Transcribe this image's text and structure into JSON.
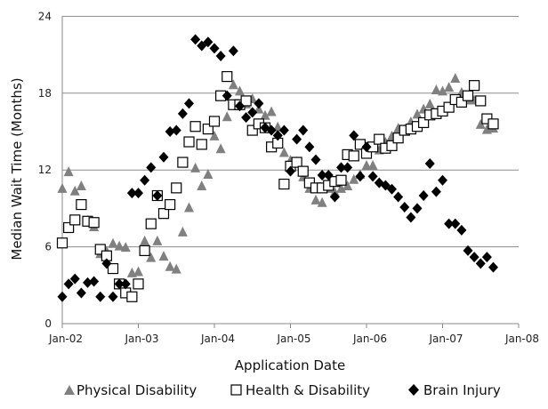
{
  "chart_data": {
    "type": "scatter",
    "xlabel": "Application Date",
    "ylabel": "Median Wait Time  (Months)",
    "ylim": [
      0,
      24
    ],
    "yticks": [
      0,
      6,
      12,
      18,
      24
    ],
    "xlim": [
      "2002-01",
      "2008-01"
    ],
    "xticks": [
      "2002-01",
      "2003-01",
      "2004-01",
      "2005-01",
      "2006-01",
      "2007-01",
      "2008-01"
    ],
    "xtick_labels": [
      "Jan-02",
      "Jan-03",
      "Jan-04",
      "Jan-05",
      "Jan-06",
      "Jan-07",
      "Jan-08"
    ],
    "grid": "horizontal",
    "legend_position": "bottom",
    "x": [
      "2002-01",
      "2002-02",
      "2002-03",
      "2002-04",
      "2002-05",
      "2002-06",
      "2002-07",
      "2002-08",
      "2002-09",
      "2002-10",
      "2002-11",
      "2002-12",
      "2003-01",
      "2003-02",
      "2003-03",
      "2003-04",
      "2003-05",
      "2003-06",
      "2003-07",
      "2003-08",
      "2003-09",
      "2003-10",
      "2003-11",
      "2003-12",
      "2004-01",
      "2004-02",
      "2004-03",
      "2004-04",
      "2004-05",
      "2004-06",
      "2004-07",
      "2004-08",
      "2004-09",
      "2004-10",
      "2004-11",
      "2004-12",
      "2005-01",
      "2005-02",
      "2005-03",
      "2005-04",
      "2005-05",
      "2005-06",
      "2005-07",
      "2005-08",
      "2005-09",
      "2005-10",
      "2005-11",
      "2005-12",
      "2006-01",
      "2006-02",
      "2006-03",
      "2006-04",
      "2006-05",
      "2006-06",
      "2006-07",
      "2006-08",
      "2006-09",
      "2006-10",
      "2006-11",
      "2006-12",
      "2007-01",
      "2007-02",
      "2007-03",
      "2007-04",
      "2007-05",
      "2007-06",
      "2007-07",
      "2007-08",
      "2007-09"
    ],
    "series": [
      {
        "name": "Physical Disability",
        "marker": "triangle",
        "color": "#808080",
        "values": [
          10.6,
          11.9,
          10.4,
          10.8,
          8.1,
          7.6,
          5.5,
          5.7,
          6.3,
          6.1,
          6.0,
          4.0,
          4.1,
          6.5,
          5.2,
          6.5,
          5.3,
          4.5,
          4.3,
          7.2,
          9.1,
          12.2,
          10.8,
          11.7,
          14.7,
          13.7,
          16.2,
          18.7,
          18.2,
          17.2,
          17.6,
          16.8,
          16.3,
          16.6,
          15.4,
          13.4,
          12.8,
          12.7,
          11.5,
          10.6,
          9.7,
          9.5,
          10.6,
          10.3,
          10.6,
          10.8,
          11.3,
          11.7,
          12.4,
          12.4,
          13.6,
          14.2,
          14.7,
          15.3,
          15.2,
          15.8,
          16.4,
          16.8,
          17.2,
          18.3,
          18.2,
          18.5,
          19.2,
          18.1,
          17.5,
          17.5,
          15.6,
          15.2,
          15.3
        ]
      },
      {
        "name": "Health & Disability",
        "marker": "square",
        "color": "#ffffff",
        "values": [
          6.3,
          7.5,
          8.1,
          9.3,
          8.0,
          7.9,
          5.8,
          5.3,
          4.3,
          3.1,
          2.4,
          2.1,
          3.1,
          5.7,
          7.8,
          10.0,
          8.6,
          9.3,
          10.6,
          12.6,
          14.2,
          15.4,
          14.0,
          15.2,
          15.8,
          17.8,
          19.3,
          17.1,
          17.1,
          17.4,
          15.1,
          15.6,
          15.3,
          13.8,
          14.1,
          10.9,
          12.3,
          12.6,
          11.9,
          11.0,
          10.6,
          10.6,
          10.8,
          11.1,
          11.2,
          13.2,
          13.1,
          14.0,
          13.3,
          13.8,
          14.4,
          13.7,
          13.9,
          14.5,
          15.1,
          15.2,
          15.4,
          15.7,
          16.3,
          16.4,
          16.6,
          16.9,
          17.5,
          17.3,
          17.8,
          18.6,
          17.4,
          16.0,
          15.6
        ]
      },
      {
        "name": "Brain Injury",
        "marker": "diamond",
        "color": "#000000",
        "values": [
          2.1,
          3.1,
          3.5,
          2.4,
          3.2,
          3.3,
          2.1,
          4.7,
          2.1,
          3.1,
          3.1,
          10.2,
          10.2,
          11.2,
          12.2,
          10.0,
          13.0,
          15.0,
          15.1,
          16.4,
          17.2,
          22.2,
          21.7,
          22.0,
          21.5,
          20.9,
          17.8,
          21.3,
          17.0,
          16.1,
          16.5,
          17.2,
          15.3,
          15.1,
          14.7,
          15.1,
          11.9,
          14.4,
          15.1,
          13.8,
          12.8,
          11.6,
          11.6,
          9.9,
          12.2,
          12.2,
          14.7,
          11.5,
          13.8,
          11.5,
          11.0,
          10.8,
          10.5,
          9.9,
          9.1,
          8.3,
          9.0,
          10.0,
          12.5,
          10.3,
          11.2,
          7.8,
          7.8,
          7.3,
          5.7,
          5.2,
          4.7,
          5.2,
          4.4
        ]
      }
    ]
  }
}
